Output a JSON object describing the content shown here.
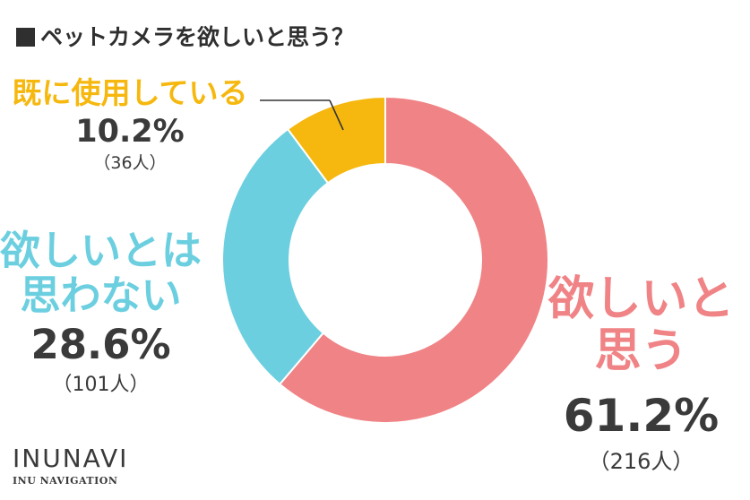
{
  "chart_data": {
    "type": "pie",
    "title": "ペットカメラを欲しいと思う？",
    "total_label_hidden": false,
    "slices": [
      {
        "id": "want",
        "label_lines": [
          "欲しいと",
          "思う"
        ],
        "value": 61.2,
        "percent_label": "61.2%",
        "count_label": "（216人）",
        "color": "#f08385"
      },
      {
        "id": "notwant",
        "label_lines": [
          "欲しいとは",
          "思わない"
        ],
        "value": 28.6,
        "percent_label": "28.6%",
        "count_label": "（101人）",
        "color": "#6ccfe0"
      },
      {
        "id": "using",
        "label_lines": [
          "既に使用している"
        ],
        "value": 10.2,
        "percent_label": "10.2%",
        "count_label": "（36人）",
        "color": "#f6b80e"
      }
    ]
  },
  "logo": {
    "main": "INUNAVI",
    "sub": "INU NAVIGATION"
  },
  "colors": {
    "text": "#3a3a3a",
    "leader": "#333333"
  }
}
